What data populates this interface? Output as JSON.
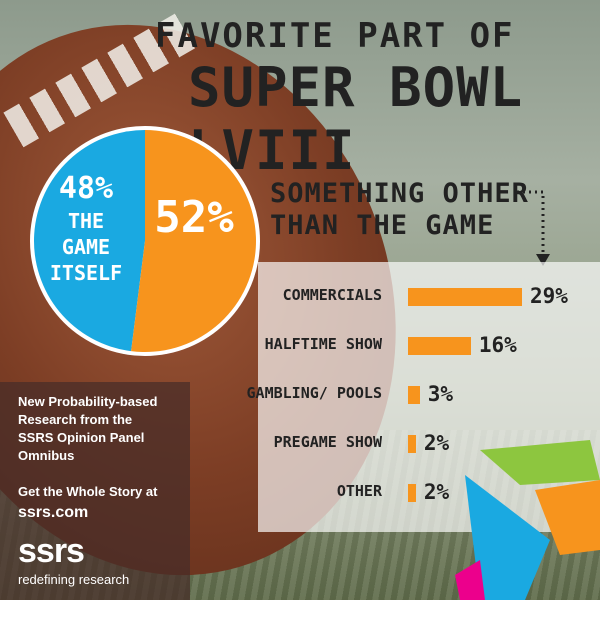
{
  "header": {
    "title_line1": "FAVORITE PART OF",
    "title_line2": "SUPER BOWL LVIII"
  },
  "subtitle": {
    "line1": "SOMETHING OTHER",
    "line2": "THAN THE GAME"
  },
  "chart_data": [
    {
      "type": "pie",
      "slices": [
        {
          "label_lines": [
            "THE",
            "GAME",
            "ITSELF"
          ],
          "value": 48,
          "value_label": "48%",
          "color": "#1aa9e1"
        },
        {
          "label_lines": [],
          "value": 52,
          "value_label": "52%",
          "color": "#f7941d"
        }
      ]
    },
    {
      "type": "bar",
      "orientation": "horizontal",
      "categories": [
        "COMMERCIALS",
        "HALFTIME SHOW",
        "GAMBLING/ POOLS",
        "PREGAME SHOW",
        "OTHER"
      ],
      "values": [
        29,
        16,
        3,
        2,
        2
      ],
      "value_labels": [
        "29%",
        "16%",
        "3%",
        "2%",
        "2%"
      ],
      "color": "#f7941d",
      "xlim": [
        0,
        29
      ]
    }
  ],
  "sidebar": {
    "blurb": [
      "New Probability-based",
      "Research from the",
      "SSRS Opinion Panel",
      "Omnibus"
    ],
    "cta": "Get the Whole Story at",
    "url": "ssrs.com",
    "logo": "ssrs",
    "tagline": "redefining research"
  },
  "colors": {
    "orange": "#f7941d",
    "blue": "#1aa9e1",
    "green": "#8dc63f",
    "pink": "#ec008c"
  },
  "icons": {
    "arrow": "dotted-arrow-icon"
  }
}
